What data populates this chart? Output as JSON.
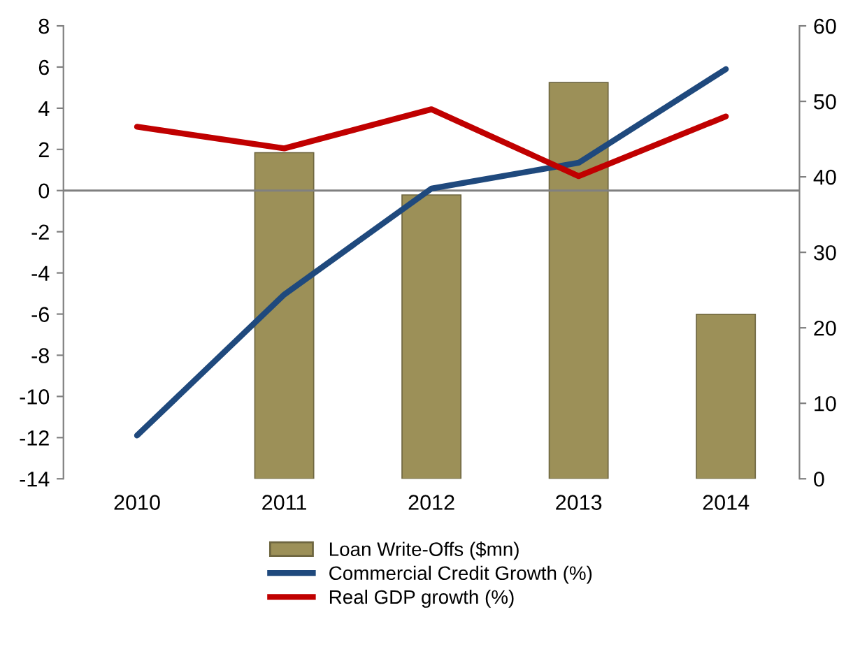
{
  "chart_data": {
    "type": "bar",
    "categories": [
      "2010",
      "2011",
      "2012",
      "2013",
      "2014"
    ],
    "series": [
      {
        "name": "Loan Write-Offs ($mn)",
        "axis": "y2",
        "color": "#9c9058",
        "values": [
          null,
          43.2,
          37.6,
          52.5,
          21.8
        ]
      },
      {
        "name": "Commercial Credit Growth (%)",
        "type": "line",
        "color": "#1f497d",
        "values": [
          -11.9,
          -5.05,
          0.1,
          1.35,
          5.9
        ]
      },
      {
        "name": "Real GDP growth (%)",
        "type": "line",
        "color": "#c00000",
        "values": [
          3.1,
          2.05,
          3.95,
          0.7,
          3.6
        ]
      }
    ],
    "ylim": [
      -14,
      8
    ],
    "yticks": [
      -14,
      -12,
      -10,
      -8,
      -6,
      -4,
      -2,
      0,
      2,
      4,
      6,
      8
    ],
    "y2lim": [
      0,
      60
    ],
    "y2ticks": [
      0,
      10,
      20,
      30,
      40,
      50,
      60
    ],
    "ref_lines": [
      {
        "axis": "y",
        "value": 0,
        "color": "#808080"
      }
    ],
    "grid": false,
    "legend": "bottom",
    "marker": "none",
    "line_style": "solid"
  }
}
